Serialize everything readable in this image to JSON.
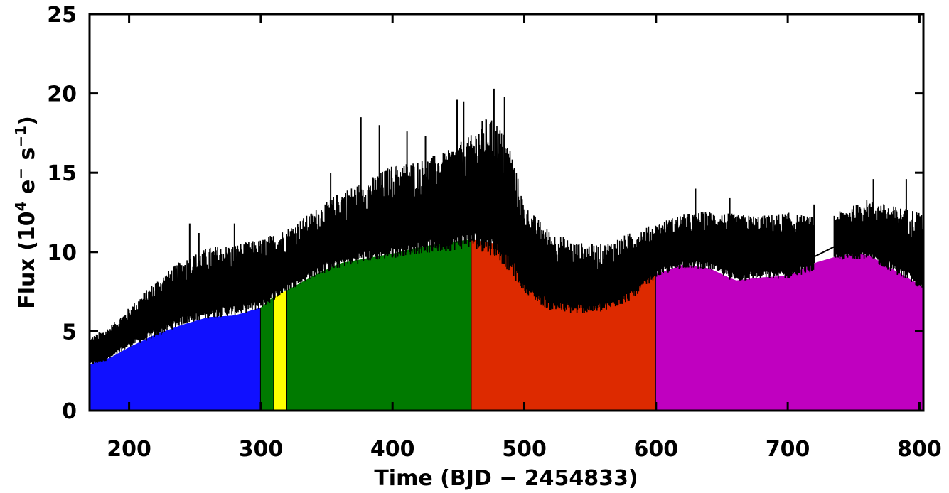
{
  "chart_data": {
    "type": "area",
    "title": "",
    "xlabel": "Time (BJD − 2454833)",
    "ylabel": "Flux (10",
    "ylabel_exp1": "4",
    "ylabel_mid": " e",
    "ylabel_exp2": "−",
    "ylabel_mid2": " s",
    "ylabel_exp3": "−1",
    "ylabel_end": ")",
    "xlim": [
      170,
      803
    ],
    "ylim": [
      0,
      25
    ],
    "x_ticks": [
      200,
      300,
      400,
      500,
      600,
      700,
      800
    ],
    "y_ticks": [
      0,
      5,
      10,
      15,
      20,
      25
    ],
    "grid": false,
    "quarter_fills": [
      {
        "x_start": 170,
        "x_end": 300,
        "color": "#1010ff"
      },
      {
        "x_start": 300,
        "x_end": 310,
        "color": "#007a00"
      },
      {
        "x_start": 310,
        "x_end": 320,
        "color": "#ffff00"
      },
      {
        "x_start": 320,
        "x_end": 460,
        "color": "#007a00"
      },
      {
        "x_start": 460,
        "x_end": 600,
        "color": "#dd2a00"
      },
      {
        "x_start": 600,
        "x_end": 803,
        "color": "#c000c0"
      }
    ],
    "lower_envelope": {
      "x": [
        170,
        175,
        185,
        200,
        220,
        240,
        260,
        280,
        300,
        310,
        320,
        340,
        360,
        380,
        400,
        420,
        440,
        460,
        480,
        500,
        520,
        540,
        560,
        580,
        600,
        620,
        640,
        660,
        680,
        700,
        720,
        740,
        760,
        780,
        803
      ],
      "y": [
        2.9,
        3.1,
        3.3,
        4.0,
        4.8,
        5.4,
        5.9,
        6.0,
        6.5,
        7.2,
        7.6,
        8.5,
        9.3,
        9.6,
        9.9,
        10.3,
        10.6,
        10.8,
        10.5,
        9.8,
        9.0,
        8.3,
        7.9,
        8.2,
        8.6,
        9.2,
        9.0,
        8.2,
        8.4,
        8.5,
        9.3,
        9.8,
        9.9,
        8.9,
        7.8
      ]
    },
    "upper_envelope": {
      "x": [
        170,
        185,
        200,
        220,
        240,
        260,
        280,
        300,
        320,
        340,
        360,
        380,
        400,
        420,
        440,
        460,
        470,
        480,
        490,
        500,
        520,
        540,
        560,
        580,
        600,
        620,
        640,
        660,
        680,
        700,
        720,
        735,
        760,
        780,
        803
      ],
      "y": [
        4.6,
        5.3,
        6.5,
        8.2,
        9.5,
        10.3,
        10.5,
        10.8,
        11.5,
        12.6,
        13.8,
        14.5,
        15.5,
        15.8,
        16.3,
        17.4,
        18.5,
        18.2,
        16.5,
        13.0,
        11.3,
        10.6,
        10.5,
        11.2,
        11.8,
        12.4,
        12.6,
        12.4,
        12.3,
        12.5,
        12.2,
        12.4,
        13.3,
        12.9,
        12.6
      ]
    },
    "minimum": {
      "x": [
        170,
        185,
        200,
        220,
        240,
        260,
        280,
        300,
        320,
        340,
        360,
        380,
        400,
        420,
        440,
        460,
        480,
        500,
        510,
        520,
        540,
        560,
        580,
        600,
        620,
        640,
        660,
        680,
        700,
        720,
        740,
        760,
        780,
        803
      ],
      "y": [
        2.8,
        3.2,
        4.0,
        4.6,
        5.4,
        5.8,
        6.0,
        6.4,
        7.5,
        8.4,
        9.0,
        9.4,
        9.6,
        9.9,
        10.0,
        10.3,
        9.6,
        7.5,
        6.8,
        6.3,
        6.1,
        6.2,
        6.9,
        8.4,
        9.0,
        8.9,
        8.1,
        8.3,
        8.3,
        8.8,
        9.5,
        9.6,
        8.7,
        7.6
      ]
    },
    "gaps": [
      [
        720,
        735
      ]
    ],
    "spikes": [
      {
        "x": 246,
        "y": 11.8
      },
      {
        "x": 253,
        "y": 11.2
      },
      {
        "x": 280,
        "y": 11.8
      },
      {
        "x": 353,
        "y": 15.0
      },
      {
        "x": 376,
        "y": 18.5
      },
      {
        "x": 390,
        "y": 18.0
      },
      {
        "x": 411,
        "y": 17.6
      },
      {
        "x": 425,
        "y": 17.3
      },
      {
        "x": 449,
        "y": 19.6
      },
      {
        "x": 454,
        "y": 19.5
      },
      {
        "x": 477,
        "y": 20.3
      },
      {
        "x": 485,
        "y": 19.8
      },
      {
        "x": 630,
        "y": 14.0
      },
      {
        "x": 656,
        "y": 13.4
      },
      {
        "x": 720,
        "y": 13.0
      },
      {
        "x": 765,
        "y": 14.6
      },
      {
        "x": 790,
        "y": 14.6
      }
    ]
  }
}
